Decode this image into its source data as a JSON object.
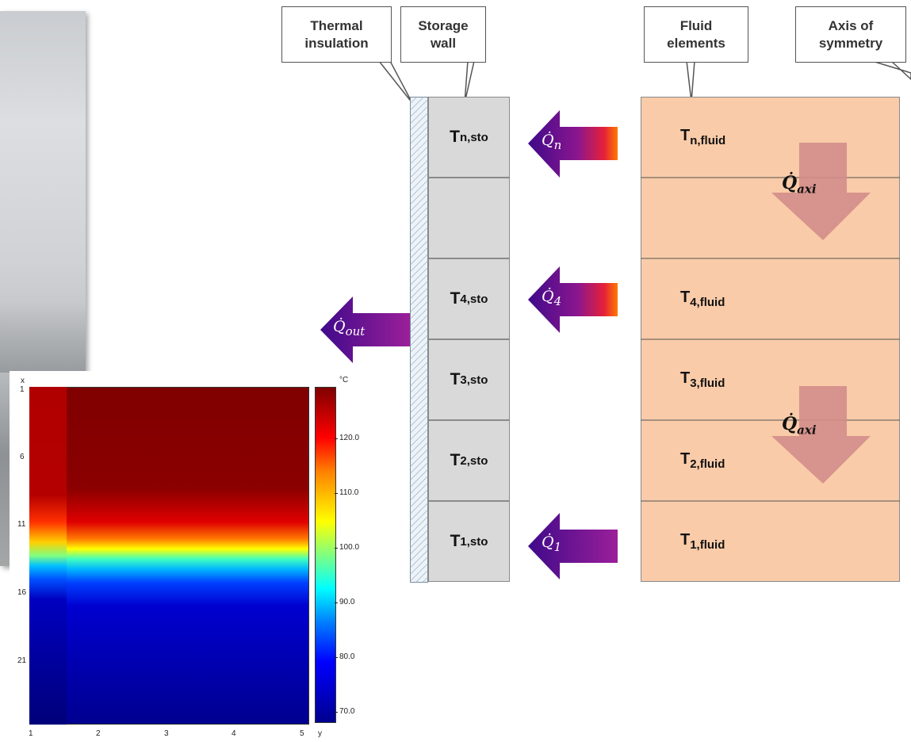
{
  "callouts": {
    "thermal_insulation": [
      "Thermal",
      "insulation"
    ],
    "storage_wall": [
      "Storage",
      "wall"
    ],
    "fluid_elements": [
      "Fluid",
      "elements"
    ],
    "axis_of_symmetry": [
      "Axis of",
      "symmetry"
    ]
  },
  "storage": [
    {
      "base": "T",
      "sub": "n,sto"
    },
    {
      "base": "",
      "sub": ""
    },
    {
      "base": "T",
      "sub": "4,sto"
    },
    {
      "base": "T",
      "sub": "3,sto"
    },
    {
      "base": "T",
      "sub": "2,sto"
    },
    {
      "base": "T",
      "sub": "1,sto"
    }
  ],
  "fluid": [
    {
      "base": "T",
      "sub": "n,fluid"
    },
    {
      "base": "",
      "sub": ""
    },
    {
      "base": "T",
      "sub": "4,fluid"
    },
    {
      "base": "T",
      "sub": "3,fluid"
    },
    {
      "base": "T",
      "sub": "2,fluid"
    },
    {
      "base": "T",
      "sub": "1,fluid"
    }
  ],
  "heat_flows": {
    "q_n": {
      "base": "Q̇",
      "sub": "n"
    },
    "q_4": {
      "base": "Q̇",
      "sub": "4"
    },
    "q_1": {
      "base": "Q̇",
      "sub": "1"
    },
    "q_out": {
      "base": "Q̇",
      "sub": "out"
    },
    "q_axi": {
      "base": "Q̇",
      "sub": "axi"
    }
  },
  "heatmap": {
    "x_axis_label": "x",
    "y_axis_label": "y",
    "x_ticks": [
      "1",
      "6",
      "11",
      "16",
      "21"
    ],
    "y_ticks": [
      "1",
      "2",
      "3",
      "4",
      "5"
    ],
    "colorbar_unit": "°C",
    "colorbar_ticks": [
      "120.0",
      "110.0",
      "100.0",
      "90.0",
      "80.0",
      "70.0"
    ]
  },
  "colors": {
    "fluid_fill": "#f9cba8",
    "storage_fill": "#d9d9d9",
    "axi_arrow": "#d38d8a",
    "arrow_gradient": [
      "#4b0082",
      "#8e1a8e",
      "#e0204a",
      "#ff6a00"
    ]
  }
}
